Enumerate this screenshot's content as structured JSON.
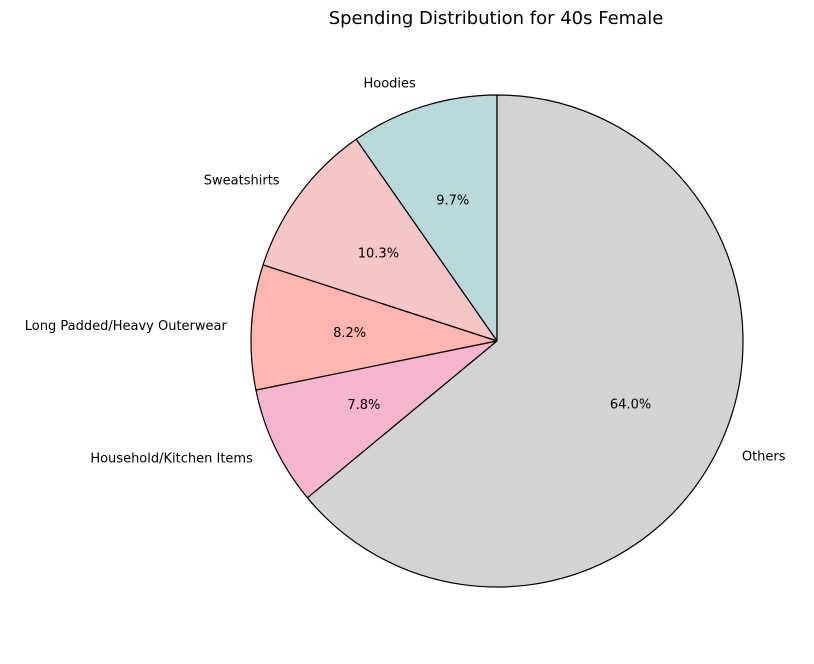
{
  "chart_data": {
    "type": "pie",
    "title": "Spending Distribution for 40s Female",
    "start_angle_deg": 90,
    "direction": "counterclockwise",
    "slices": [
      {
        "label": "Hoodies",
        "value": 9.7,
        "pct_label": "9.7%",
        "color": "#b8d8da"
      },
      {
        "label": "Sweatshirts",
        "value": 10.3,
        "pct_label": "10.3%",
        "color": "#f6c5c6"
      },
      {
        "label": "Long Padded/Heavy Outerwear",
        "value": 8.2,
        "pct_label": "8.2%",
        "color": "#ffb6b0"
      },
      {
        "label": "Household/Kitchen Items",
        "value": 7.8,
        "pct_label": "7.8%",
        "color": "#f6b5cf"
      },
      {
        "label": "Others",
        "value": 64.0,
        "pct_label": "64.0%",
        "color": "#d3d3d3"
      }
    ]
  }
}
